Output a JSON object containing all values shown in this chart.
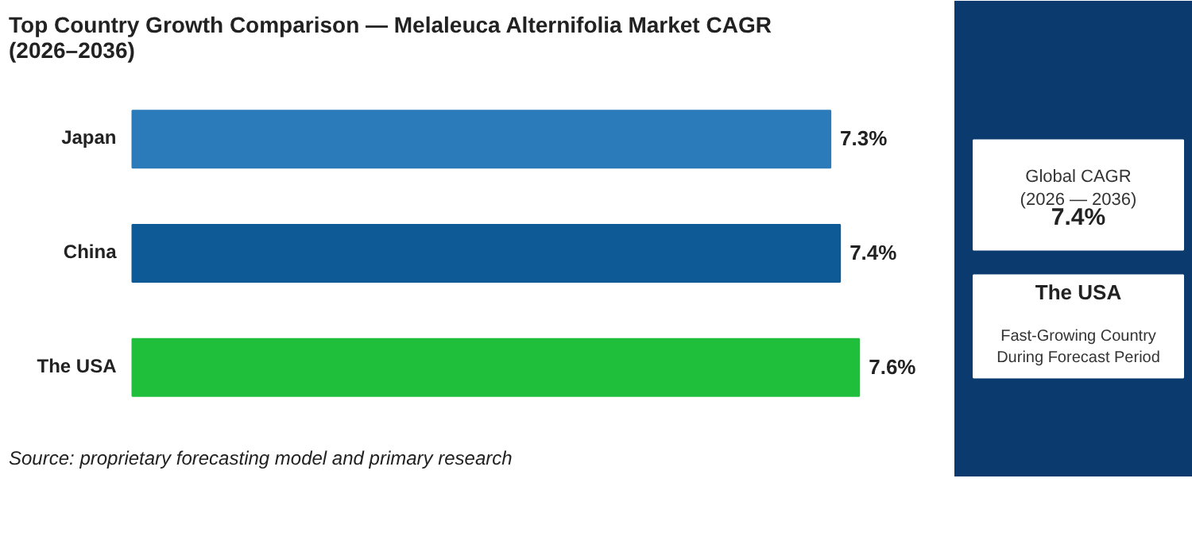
{
  "chart_data": {
    "type": "bar",
    "orientation": "horizontal",
    "title": "Top Country Growth Comparison — Melaleuca Alternifolia Market CAGR\n(2026–2036)",
    "categories": [
      "Japan",
      "China",
      "The USA"
    ],
    "values": [
      7.3,
      7.4,
      7.6
    ],
    "colors": [
      "#2b7bbb",
      "#0e5a96",
      "#1fbf3c"
    ],
    "data_labels": true,
    "value_labels": [
      "7.3%",
      "7.4%",
      "7.6%"
    ],
    "grid": false,
    "annotations": [
      "Global CAGR\n(2026 — 2036)",
      "7.4%",
      "The USA",
      "Fast-Growing Country\nDuring Forecast Period",
      "Source: proprietary forecasting model and primary research"
    ]
  }
}
